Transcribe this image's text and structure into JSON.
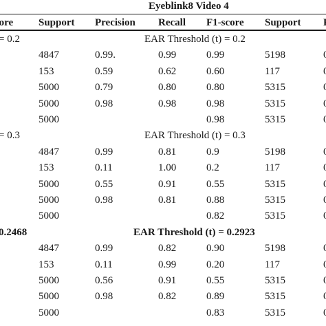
{
  "title": "Eyeblink8 Video 4",
  "headers": [
    "core",
    "Support",
    "Precision",
    "Recall",
    "F1-score",
    "Support",
    "F"
  ],
  "sections": [
    {
      "left_label": "= 0.2",
      "right_label": "EAR Threshold (t) = 0.2",
      "bold": false,
      "rows": [
        [
          "4847",
          "0.99.",
          "0.99",
          "0.99",
          "5198",
          "0"
        ],
        [
          "153",
          "0.59",
          "0.62",
          "0.60",
          "117",
          "0"
        ],
        [
          "5000",
          "0.79",
          "0.80",
          "0.80",
          "5315",
          "0"
        ],
        [
          "5000",
          "0.98",
          "0.98",
          "0.98",
          "5315",
          "0"
        ],
        [
          "5000",
          "",
          "",
          "0.98",
          "5315",
          "0"
        ]
      ]
    },
    {
      "left_label": "= 0.3",
      "right_label": "EAR Threshold (t) = 0.3",
      "bold": false,
      "rows": [
        [
          "4847",
          "0.99",
          "0.81",
          "0.9",
          "5198",
          "0"
        ],
        [
          "153",
          "0.11",
          "1.00",
          "0.2",
          "117",
          "0"
        ],
        [
          "5000",
          "0.55",
          "0.91",
          "0.55",
          "5315",
          "0"
        ],
        [
          "5000",
          "0.98",
          "0.81",
          "0.88",
          "5315",
          "0"
        ],
        [
          "5000",
          "",
          "",
          "0.82",
          "5315",
          "0"
        ]
      ]
    },
    {
      "left_label": "0.2468",
      "right_label": "EAR Threshold (t) = 0.2923",
      "bold": true,
      "rows": [
        [
          "4847",
          "0.99",
          "0.82",
          "0.90",
          "5198",
          "0"
        ],
        [
          "153",
          "0.11",
          "0.99",
          "0.20",
          "117",
          "0"
        ],
        [
          "5000",
          "0.56",
          "0.91",
          "0.55",
          "5315",
          "0"
        ],
        [
          "5000",
          "0.98",
          "0.82",
          "0.89",
          "5315",
          "0"
        ],
        [
          "5000",
          "",
          "",
          "0.83",
          "5315",
          "0"
        ]
      ]
    }
  ]
}
